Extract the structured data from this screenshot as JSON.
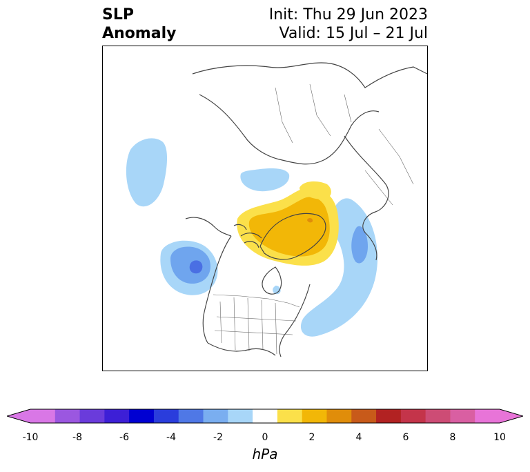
{
  "header": {
    "title_line1": "SLP",
    "title_line2": "Anomaly",
    "init_text": "Init: Thu 29 Jun 2023",
    "valid_text": "Valid: 15 Jul – 21 Jul"
  },
  "map": {
    "projection": "polar-stereographic",
    "field": "sea level pressure anomaly"
  },
  "colorbar": {
    "label": "hPa",
    "levels": [
      -10,
      -9,
      -8,
      -7,
      -6,
      -5,
      -4,
      -3,
      -2,
      -1,
      1,
      2,
      3,
      4,
      5,
      6,
      7,
      8,
      9,
      10
    ],
    "colors": [
      "#d977e6",
      "#9b57e0",
      "#6a3bdb",
      "#3d1fd6",
      "#0000d2",
      "#2a3ddc",
      "#4f78e6",
      "#7aaef0",
      "#a8d6f8",
      "#ffffff",
      "#fbe04a",
      "#f2b707",
      "#e08d0a",
      "#c85a1a",
      "#b22222",
      "#c4344a",
      "#cd4c75",
      "#d95fa2",
      "#e874d8"
    ],
    "under_color": "#d977e6",
    "over_color": "#e874d8",
    "extend": "both",
    "tick_labels": [
      "-10",
      "-8",
      "-6",
      "-4",
      "-2",
      "0",
      "2",
      "4",
      "6",
      "8",
      "10"
    ]
  }
}
